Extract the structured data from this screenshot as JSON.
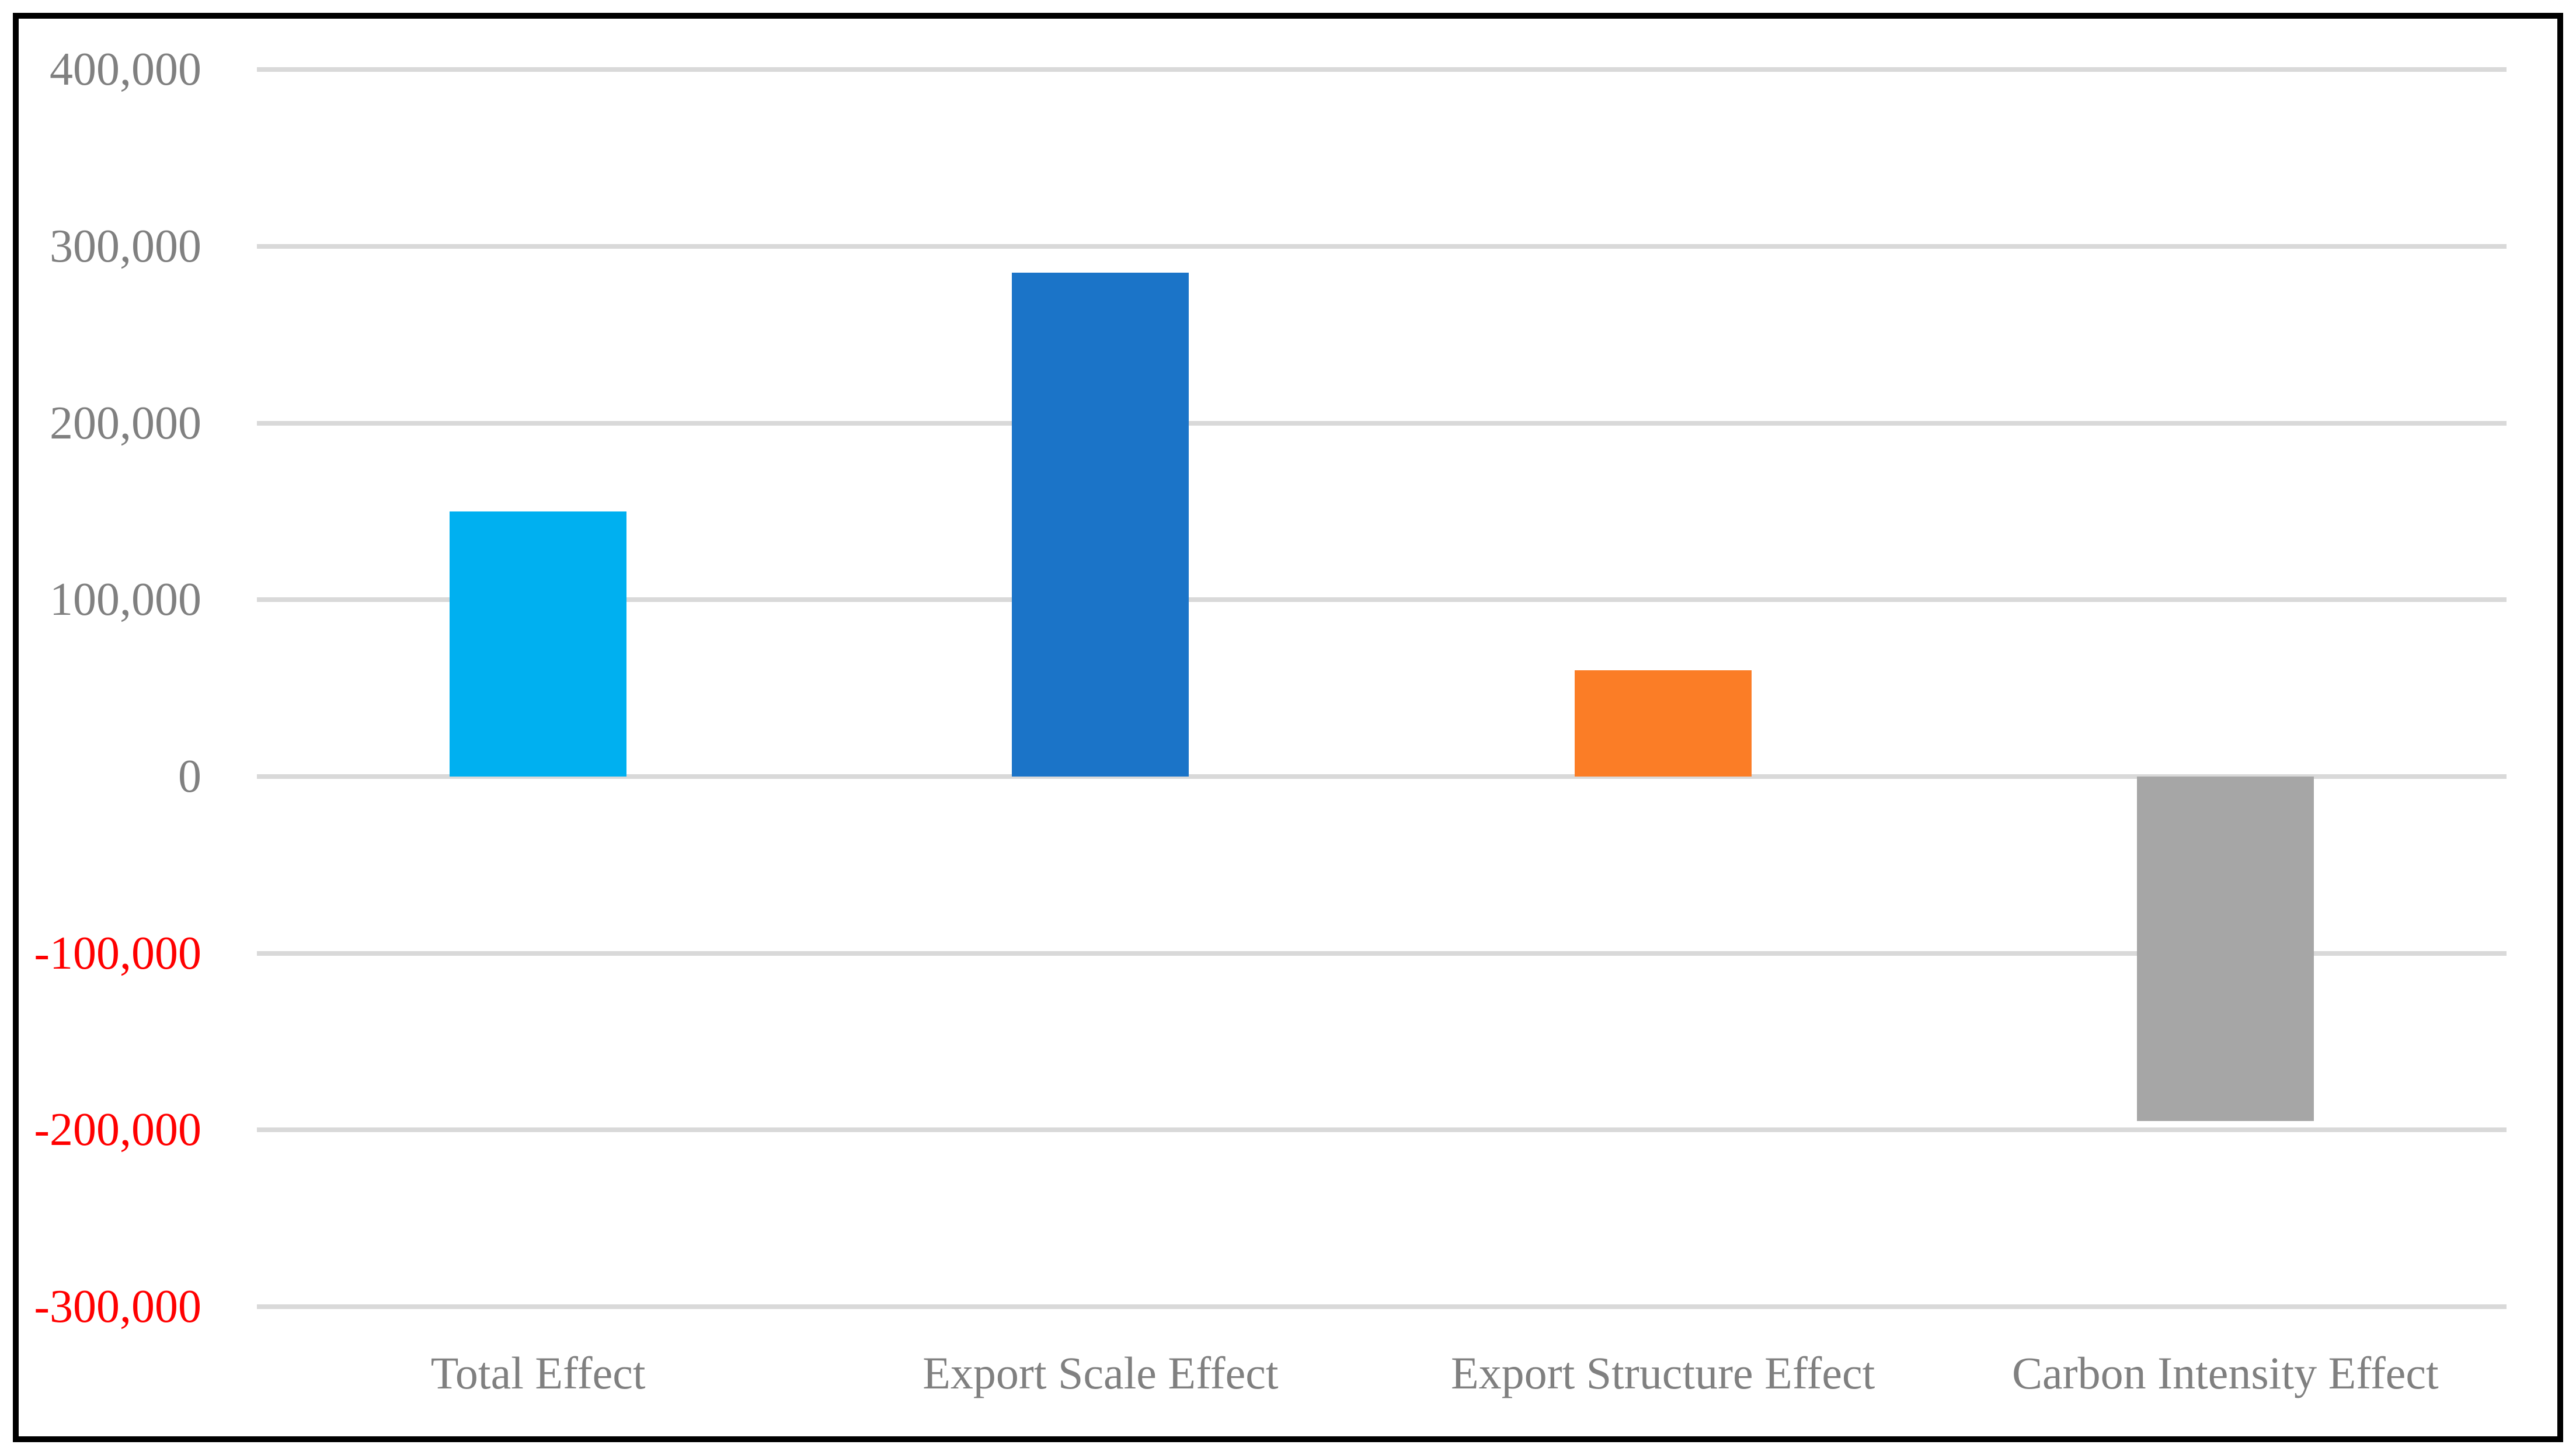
{
  "figure": {
    "background": "#FFFFFF",
    "border_color": "#000000"
  },
  "chart_data": {
    "type": "bar",
    "title": "",
    "subtitle": "",
    "xlabel": "",
    "ylabel": "",
    "categories": [
      "Total Effect",
      "Export Scale Effect",
      "Export Structure Effect",
      "Carbon Intensity Effect"
    ],
    "values": [
      150000,
      285000,
      60000,
      -195000
    ],
    "bar_colors": [
      "#00B0F0",
      "#1B74C8",
      "#FB7D26",
      "#A6A6A6"
    ],
    "ylim": [
      -300000,
      400000
    ],
    "ytick_step": 100000,
    "yticks": [
      400000,
      300000,
      200000,
      100000,
      0,
      -100000,
      -200000,
      -300000
    ],
    "ytick_labels": [
      "400,000",
      "300,000",
      "200,000",
      "100,000",
      "0",
      "-100,000",
      "-200,000",
      "-300,000"
    ],
    "grid": true,
    "legend": false,
    "styles": {
      "gridline_color": "#D9D9D9",
      "tick_label_color": "#808080",
      "negative_tick_label_color": "#FF0000",
      "category_label_color": "#808080"
    }
  }
}
